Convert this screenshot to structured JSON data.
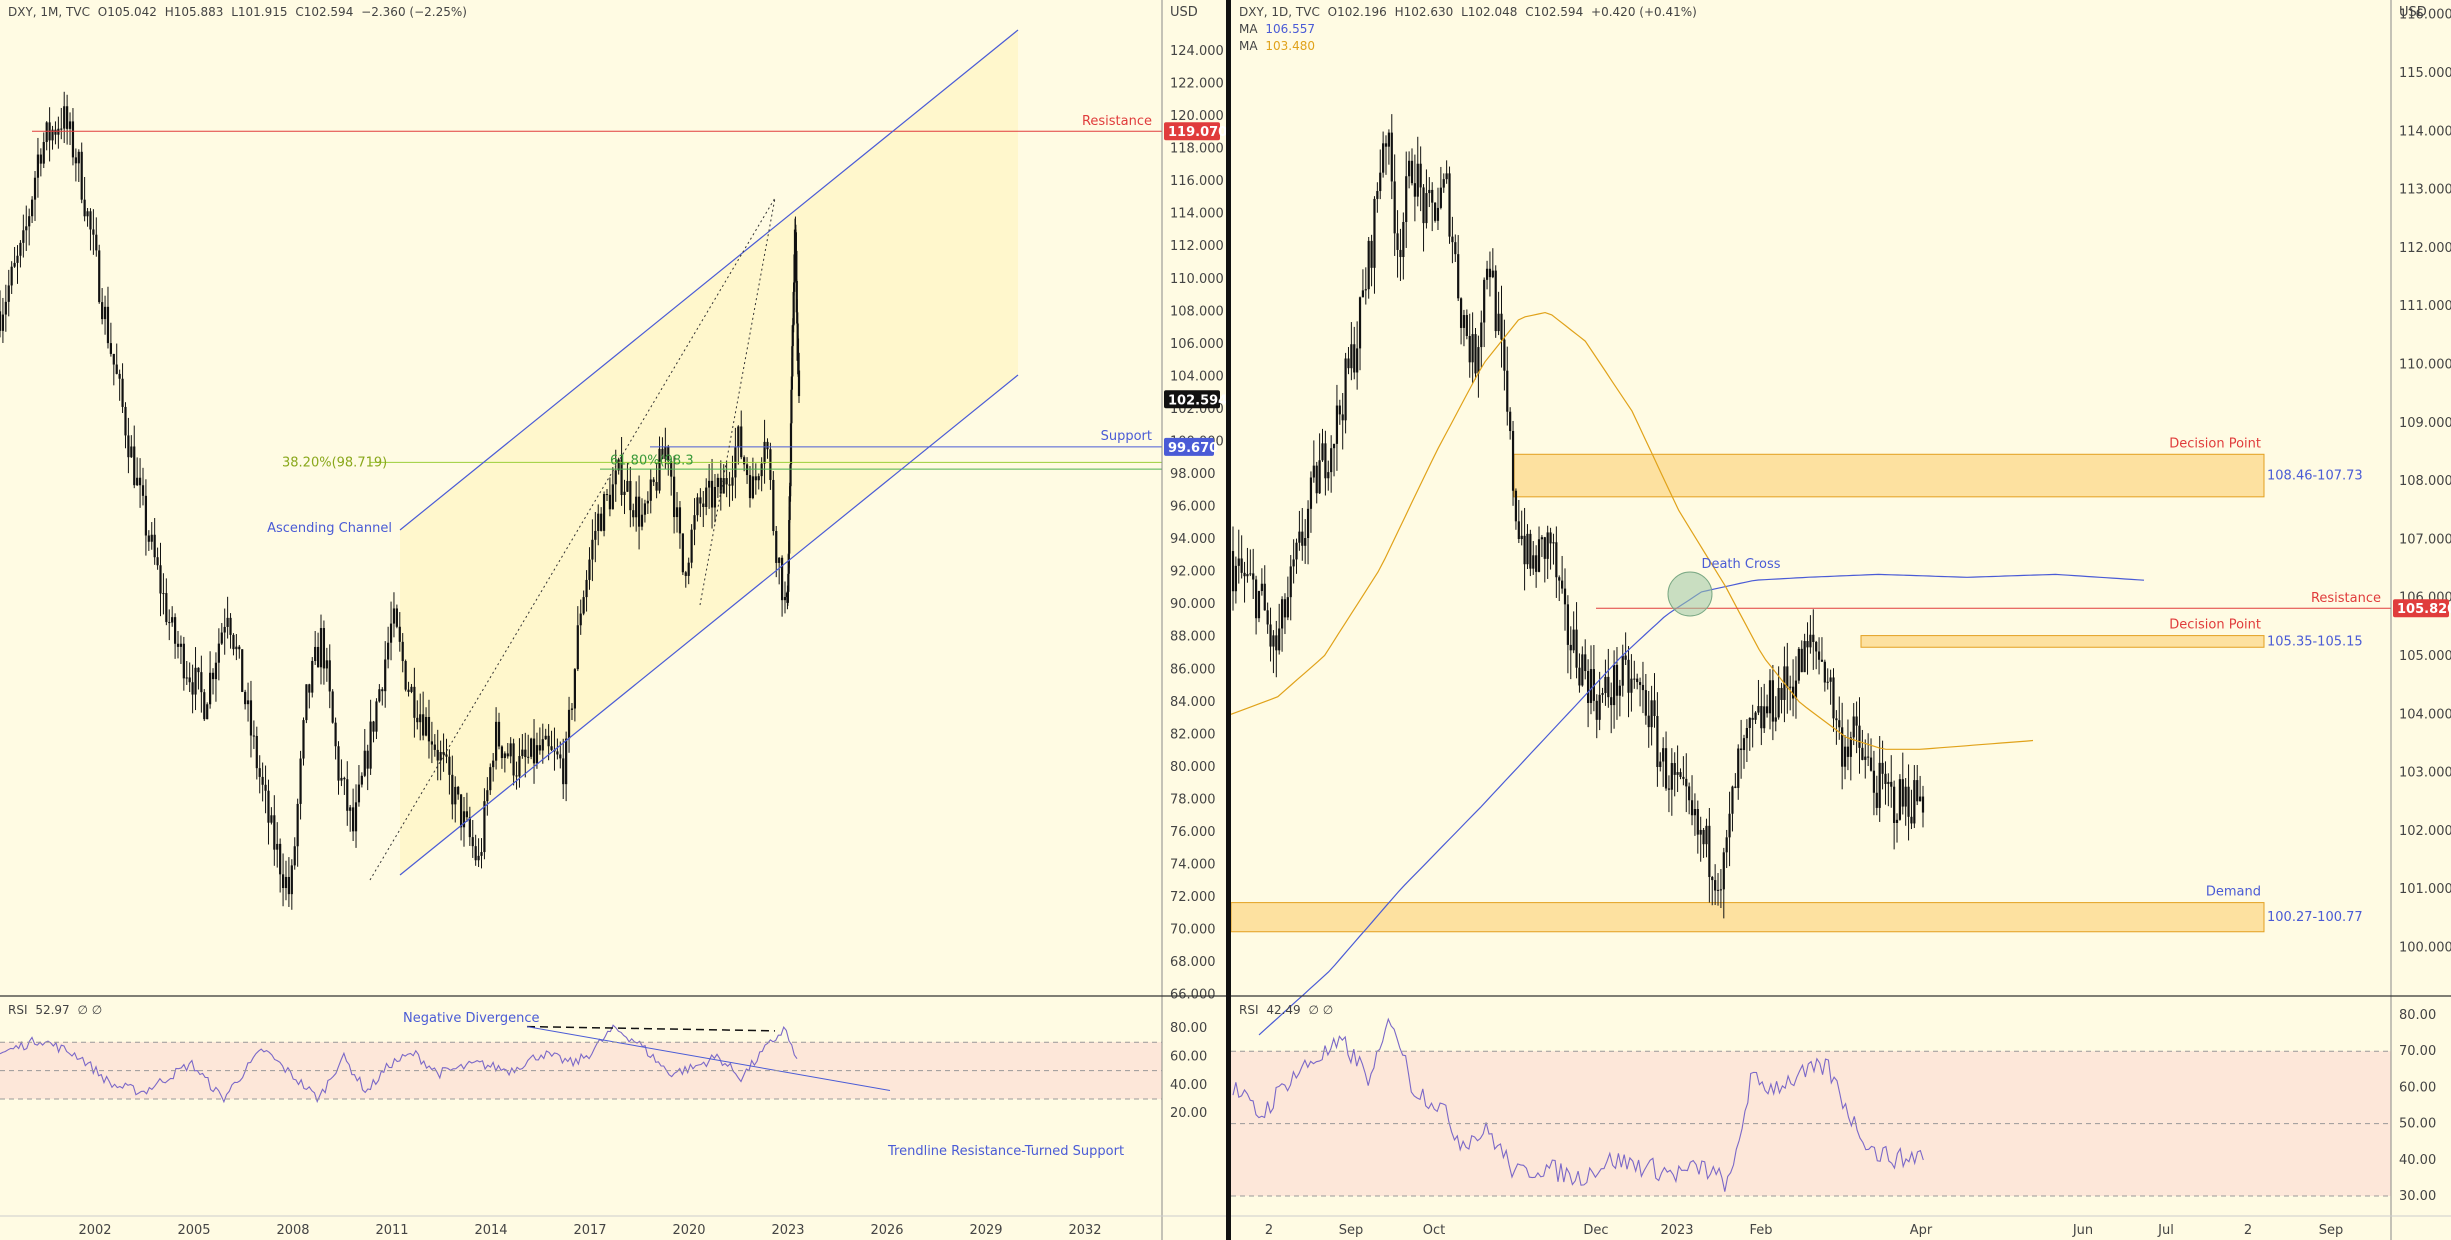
{
  "colors": {
    "background": "#fffbe3",
    "candle": "#111111",
    "resistance": "#e03c3c",
    "support": "#4a5bd6",
    "channel": "#4a5bd6",
    "fib_1": "#9ccf3a",
    "fib_2": "#4caf50",
    "rsi_line": "#7b68c8",
    "rsi_band": "#fde2d6",
    "zone_fill": "#fcd88a",
    "zone_border": "#e3a020",
    "ma_blue": "#4a5bd6",
    "ma_orange": "#e0a21a",
    "annotation_blue": "#4a5bd6",
    "annotation_red": "#e03c3c",
    "last_price_bg": "#111111"
  },
  "left": {
    "legend": {
      "symbol": "DXY, 1M, TVC",
      "open": "O105.042",
      "high": "H105.883",
      "low": "L101.915",
      "close": "C102.594",
      "change": "−2.360 (−2.25%)"
    },
    "axis_unit": "USD",
    "price_labels": [
      "124.000",
      "122.000",
      "120.000",
      "118.000",
      "116.000",
      "114.000",
      "112.000",
      "110.000",
      "108.000",
      "106.000",
      "104.000",
      "102.000",
      "100.000",
      "98.000",
      "96.000",
      "94.000",
      "92.000",
      "90.000",
      "88.000",
      "86.000",
      "84.000",
      "82.000",
      "80.000",
      "78.000",
      "76.000",
      "74.000",
      "72.000",
      "70.000",
      "68.000",
      "66.000"
    ],
    "time_labels": [
      "2002",
      "2005",
      "2008",
      "2011",
      "2014",
      "2017",
      "2020",
      "2023",
      "2026",
      "2029",
      "2032"
    ],
    "resistance": {
      "label": "Resistance",
      "price": "119.070"
    },
    "support": {
      "label": "Support",
      "price": "99.670"
    },
    "last_price": "102.594",
    "fib_382": "38.20%(98.719)",
    "fib_618": "61.80%(98.3",
    "ascending_channel": "Ascending Channel",
    "rsi": {
      "legend": "RSI",
      "value": "52.97",
      "extras": "∅ ∅",
      "levels": [
        "80.00",
        "60.00",
        "40.00",
        "20.00"
      ],
      "negative_divergence": "Negative Divergence",
      "trendline": "Trendline Resistance-Turned Support"
    }
  },
  "right": {
    "legend": {
      "symbol": "DXY, 1D, TVC",
      "open": "O102.196",
      "high": "H102.630",
      "low": "L102.048",
      "close": "C102.594",
      "change": "+0.420 (+0.41%)",
      "ma1_label": "MA",
      "ma1_value": "106.557",
      "ma2_label": "MA",
      "ma2_value": "103.480"
    },
    "axis_unit": "USD",
    "price_labels": [
      "116.000",
      "115.000",
      "114.000",
      "113.000",
      "112.000",
      "111.000",
      "110.000",
      "109.000",
      "108.000",
      "107.000",
      "106.000",
      "105.000",
      "104.000",
      "103.000",
      "102.000",
      "101.000",
      "100.000"
    ],
    "time_labels": [
      "2",
      "Sep",
      "Oct",
      "Dec",
      "2023",
      "Feb",
      "Apr",
      "Jun",
      "Jul",
      "2",
      "Sep"
    ],
    "resistance": {
      "label": "Resistance",
      "price": "105.820"
    },
    "decision_point_1": {
      "label": "Decision Point",
      "range": "108.46-107.73"
    },
    "decision_point_2": {
      "label": "Decision Point",
      "range": "105.35-105.15"
    },
    "demand": {
      "label": "Demand",
      "range": "100.27-100.77"
    },
    "death_cross": "Death Cross",
    "rsi": {
      "legend": "RSI",
      "value": "42.49",
      "extras": "∅ ∅",
      "levels": [
        "80.00",
        "70.00",
        "60.00",
        "50.00",
        "40.00",
        "30.00"
      ]
    }
  }
}
